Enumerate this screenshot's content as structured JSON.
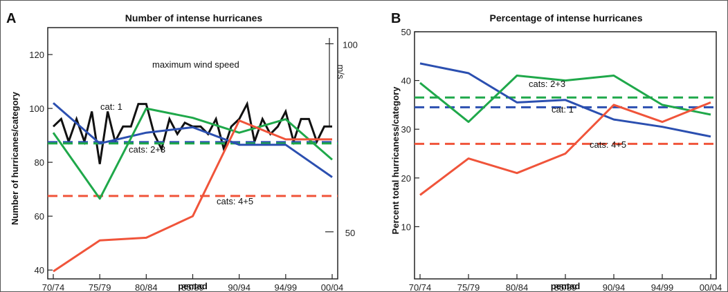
{
  "colors": {
    "cat1": "#2b4fb0",
    "cats23": "#1fa84a",
    "cats45": "#f0543a",
    "wind": "#111111"
  },
  "chart_data": [
    {
      "type": "line",
      "panel_letter": "A",
      "title": "Number of intense hurricanes",
      "xlabel": "pentad",
      "ylabel": "Number of hurricanes/category",
      "y2label": "m/s",
      "categories": [
        "70/74",
        "75/79",
        "80/84",
        "85/89",
        "90/94",
        "94/99",
        "00/04"
      ],
      "ylim": [
        38,
        130
      ],
      "yticks": [
        40,
        60,
        80,
        100,
        120
      ],
      "y2lim": [
        38.4,
        104.3
      ],
      "y2ticks": [
        50,
        100
      ],
      "series": [
        {
          "key": "cat1",
          "values": [
            102,
            87,
            91,
            93,
            86.5,
            86.5,
            74.5
          ]
        },
        {
          "key": "cats23",
          "values": [
            91,
            66.5,
            100,
            96.5,
            91,
            96,
            81
          ]
        },
        {
          "key": "cats45",
          "values": [
            39.5,
            51,
            52,
            60,
            95.5,
            88.5,
            88.5
          ]
        }
      ],
      "means": [
        {
          "key": "cat1",
          "value": 87.5
        },
        {
          "key": "cats23",
          "value": 87
        },
        {
          "key": "cats45",
          "value": 67.5
        }
      ],
      "wind_series": {
        "key": "wind",
        "x": [
          0,
          0.17,
          0.33,
          0.5,
          0.67,
          0.83,
          1.0,
          1.17,
          1.33,
          1.5,
          1.67,
          1.83,
          2.0,
          2.17,
          2.33,
          2.5,
          2.67,
          2.83,
          3.0,
          3.17,
          3.33,
          3.5,
          3.67,
          3.83,
          4.0,
          4.17,
          4.33,
          4.5,
          4.67,
          4.83,
          5.0,
          5.17,
          5.33,
          5.5,
          5.67,
          5.83,
          6.0
        ],
        "values": [
          78,
          80,
          74,
          80,
          74,
          82,
          68,
          82,
          74,
          78,
          78,
          84,
          84,
          76,
          72,
          80,
          76,
          79,
          78,
          78,
          76,
          80,
          72,
          78,
          80,
          84,
          74,
          80,
          76,
          78,
          82,
          74,
          80,
          80,
          74,
          78,
          78
        ]
      },
      "labels": [
        {
          "key": "wind",
          "text": "maximum wind speed"
        },
        {
          "key": "cat1",
          "text": "cat: 1"
        },
        {
          "key": "cats23",
          "text": "cats: 2+3"
        },
        {
          "key": "cats45",
          "text": "cats: 4+5"
        }
      ]
    },
    {
      "type": "line",
      "panel_letter": "B",
      "title": "Percentage of intense hurricanes",
      "xlabel": "pentad",
      "ylabel": "Percent  total hurricaness/category",
      "categories": [
        "70/74",
        "75/79",
        "80/84",
        "85/89",
        "90/94",
        "94/99",
        "00/04"
      ],
      "ylim": [
        0,
        50
      ],
      "yticks": [
        10,
        20,
        30,
        40,
        50
      ],
      "series": [
        {
          "key": "cat1",
          "values": [
            43.5,
            41.5,
            35.5,
            36,
            32,
            30.5,
            28.5
          ]
        },
        {
          "key": "cats23",
          "values": [
            39.5,
            31.5,
            41,
            40,
            41,
            35,
            33
          ]
        },
        {
          "key": "cats45",
          "values": [
            16.5,
            24,
            21,
            25,
            35,
            31.5,
            35.5
          ]
        }
      ],
      "means": [
        {
          "key": "cat1",
          "value": 34.5
        },
        {
          "key": "cats23",
          "value": 36.5
        },
        {
          "key": "cats45",
          "value": 27
        }
      ],
      "labels": [
        {
          "key": "cats23",
          "text": "cats: 2+3"
        },
        {
          "key": "cat1",
          "text": "cat: 1"
        },
        {
          "key": "cats45",
          "text": "cats: 4+5"
        }
      ]
    }
  ]
}
